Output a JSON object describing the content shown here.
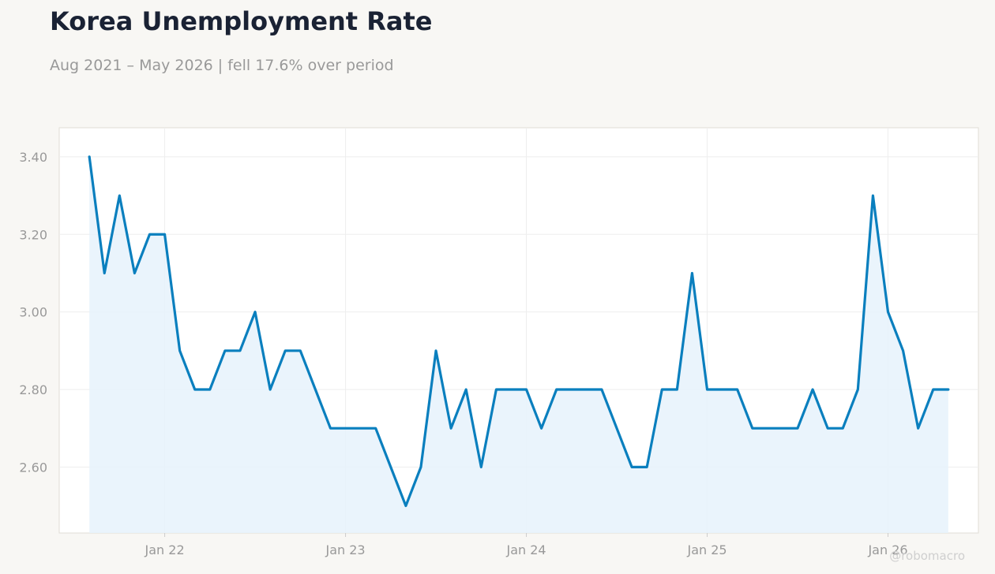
{
  "header": {
    "title": "Korea Unemployment Rate",
    "subtitle": "Aug 2021 – May 2026 | fell 17.6% over period"
  },
  "watermark": "@robomacro",
  "colors": {
    "line": "#0a7fbe",
    "fill": "#e6f2fb",
    "background": "#f8f7f4",
    "plot_background": "#ffffff",
    "grid": "#eeeeee"
  },
  "chart_data": {
    "type": "area",
    "title": "Korea Unemployment Rate",
    "xlabel": "",
    "ylabel": "",
    "grid": true,
    "x_tick_labels": [
      "Jan 22",
      "Jan 23",
      "Jan 24",
      "Jan 25",
      "Jan 26"
    ],
    "y_tick_labels": [
      "3.40",
      "3.20",
      "3.00",
      "2.80",
      "2.60"
    ],
    "y_ticks": [
      3.4,
      3.2,
      3.0,
      2.8,
      2.6
    ],
    "ylim": [
      2.43,
      3.475
    ],
    "xlim": [
      "2021-06",
      "2026-07"
    ],
    "x": [
      "2021-08",
      "2021-09",
      "2021-10",
      "2021-11",
      "2021-12",
      "2022-01",
      "2022-02",
      "2022-03",
      "2022-04",
      "2022-05",
      "2022-06",
      "2022-07",
      "2022-08",
      "2022-09",
      "2022-10",
      "2022-11",
      "2022-12",
      "2023-01",
      "2023-02",
      "2023-03",
      "2023-04",
      "2023-05",
      "2023-06",
      "2023-07",
      "2023-08",
      "2023-09",
      "2023-10",
      "2023-11",
      "2023-12",
      "2024-01",
      "2024-02",
      "2024-03",
      "2024-04",
      "2024-05",
      "2024-06",
      "2024-07",
      "2024-08",
      "2024-09",
      "2024-10",
      "2024-11",
      "2024-12",
      "2025-01",
      "2025-02",
      "2025-03",
      "2025-04",
      "2025-05",
      "2025-06",
      "2025-07",
      "2025-08",
      "2025-09",
      "2025-10",
      "2025-11",
      "2025-12",
      "2026-01",
      "2026-02",
      "2026-03",
      "2026-04",
      "2026-05"
    ],
    "series": [
      {
        "values": [
          3.4,
          3.1,
          3.3,
          3.1,
          3.2,
          3.2,
          2.9,
          2.8,
          2.8,
          2.9,
          2.9,
          3.0,
          2.8,
          2.9,
          2.9,
          2.8,
          2.7,
          2.7,
          2.7,
          2.7,
          2.6,
          2.5,
          2.6,
          2.9,
          2.7,
          2.8,
          2.6,
          2.8,
          2.8,
          2.8,
          2.7,
          2.8,
          2.8,
          2.8,
          2.8,
          2.7,
          2.6,
          2.6,
          2.8,
          2.8,
          3.1,
          2.8,
          2.8,
          2.8,
          2.7,
          2.7,
          2.7,
          2.7,
          2.8,
          2.7,
          2.7,
          2.8,
          3.3,
          3.0,
          2.9,
          2.7,
          2.8,
          2.8
        ]
      }
    ]
  }
}
